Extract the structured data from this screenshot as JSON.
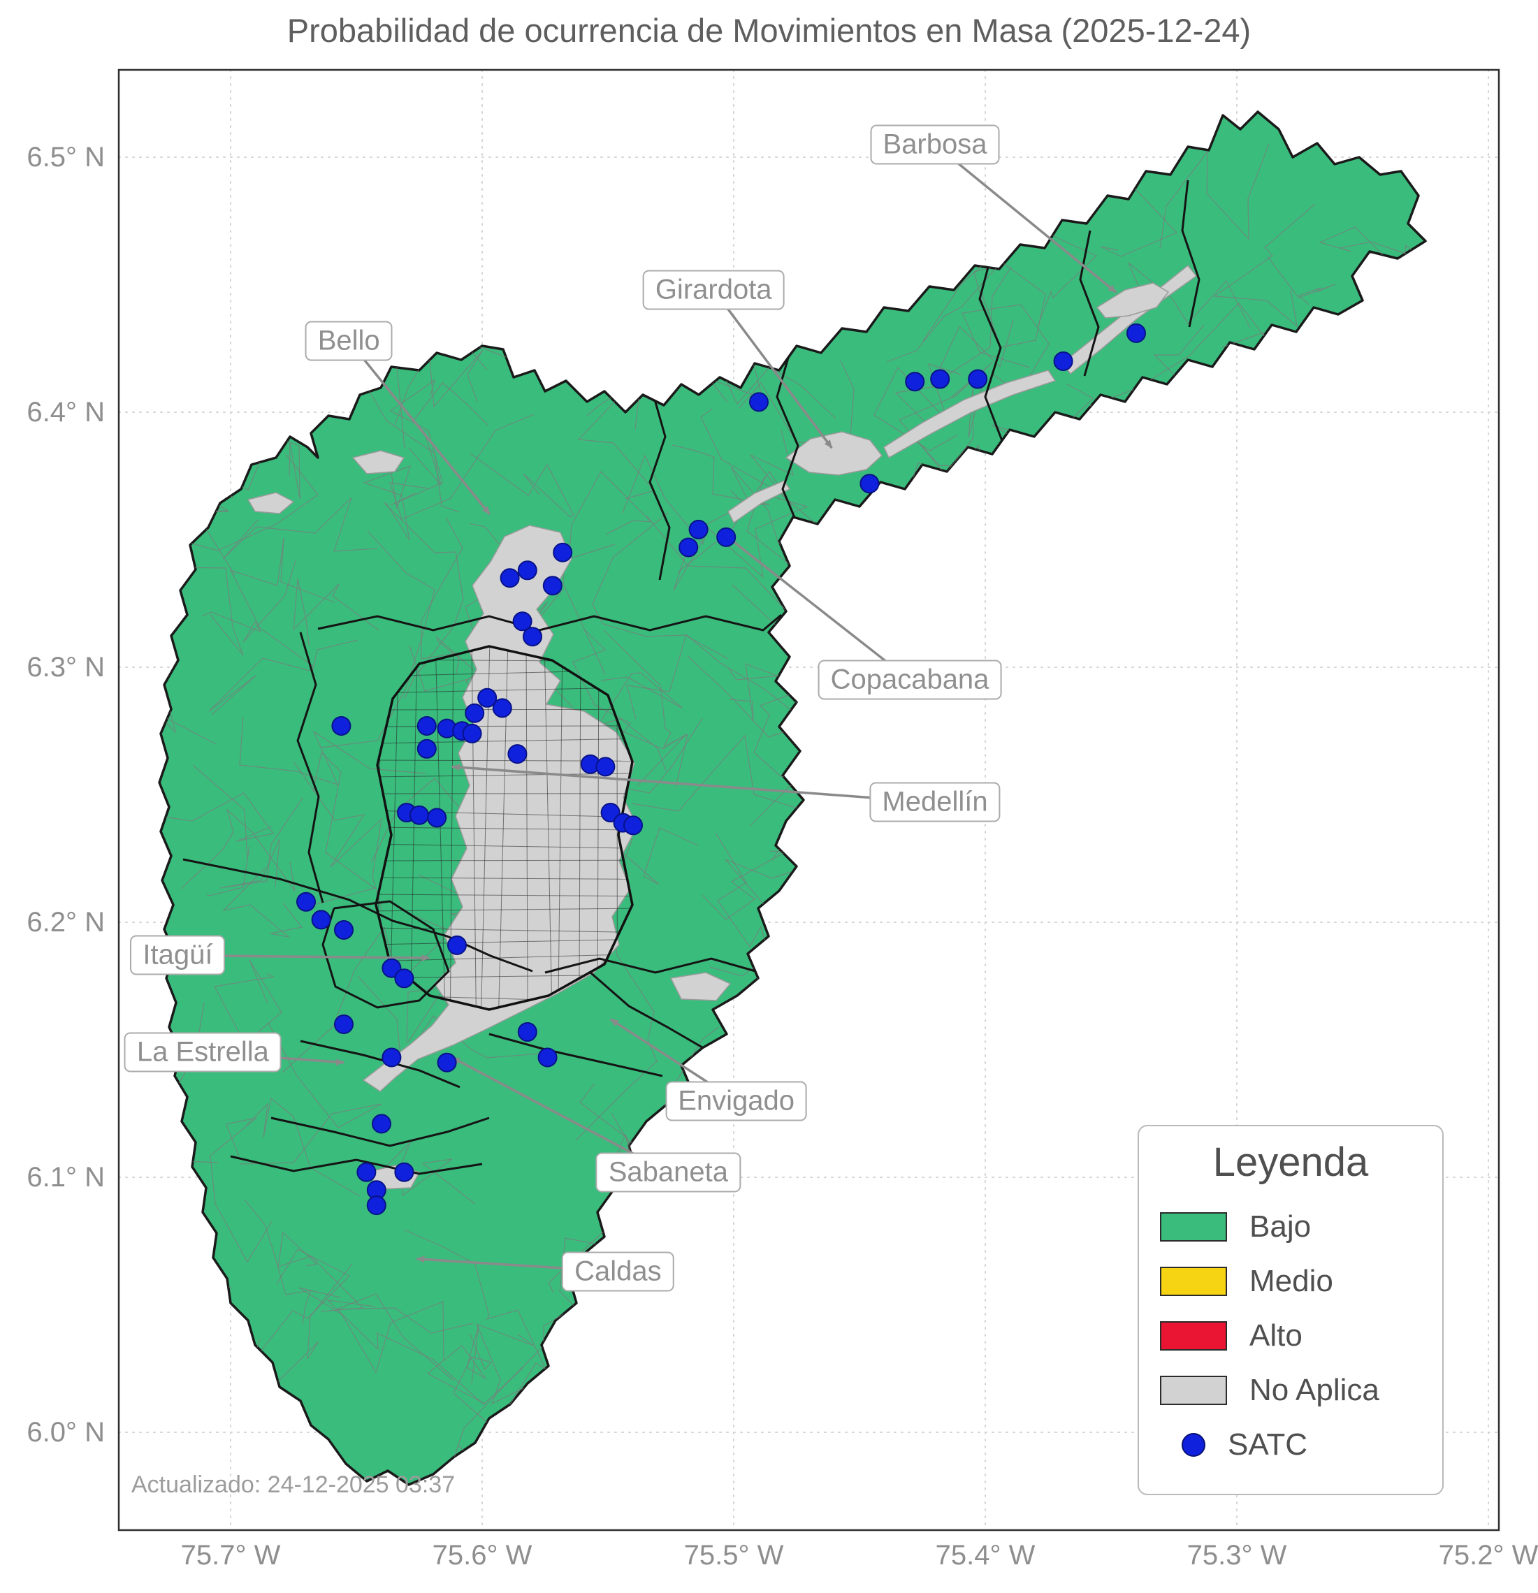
{
  "title": "Probabilidad de ocurrencia de Movimientos en Masa (2025-12-24)",
  "footnote": "Actualizado: 24-12-2025 03:37",
  "axes": {
    "x_tick_labels": [
      "75.7° W",
      "75.6° W",
      "75.5° W",
      "75.4° W",
      "75.3° W",
      "75.2° W"
    ],
    "y_tick_labels": [
      "6.5° N",
      "6.4° N",
      "6.3° N",
      "6.2° N",
      "6.1° N",
      "6.0° N"
    ]
  },
  "legend": {
    "title": "Leyenda",
    "items": [
      {
        "label": "Bajo",
        "swatch": "patch",
        "color": "#3abc7d"
      },
      {
        "label": "Medio",
        "swatch": "patch",
        "color": "#f6d413"
      },
      {
        "label": "Alto",
        "swatch": "patch",
        "color": "#e91532"
      },
      {
        "label": "No Aplica",
        "swatch": "patch",
        "color": "#d2d2d2"
      },
      {
        "label": "SATC",
        "swatch": "point",
        "color": "#1021dd"
      }
    ]
  },
  "colors": {
    "bajo": "#3abc7d",
    "medio": "#f6d413",
    "alto": "#e91532",
    "no_aplica": "#d2d2d2",
    "satc": "#1021dd",
    "boundary": "#141414",
    "annotation": "#8a8a8a"
  },
  "annotations": [
    {
      "name": "Barbosa",
      "lon": 75.42,
      "lat": 6.505,
      "target_lon": 75.348,
      "target_lat": 6.447
    },
    {
      "name": "Girardota",
      "lon": 75.508,
      "lat": 6.448,
      "target_lon": 75.461,
      "target_lat": 6.386
    },
    {
      "name": "Bello",
      "lon": 75.653,
      "lat": 6.428,
      "target_lon": 75.597,
      "target_lat": 6.36
    },
    {
      "name": "Copacabana",
      "lon": 75.43,
      "lat": 6.295,
      "target_lon": 75.505,
      "target_lat": 6.353
    },
    {
      "name": "Medellín",
      "lon": 75.42,
      "lat": 6.247,
      "target_lon": 75.612,
      "target_lat": 6.261
    },
    {
      "name": "Itagüí",
      "lon": 75.721,
      "lat": 6.187,
      "target_lon": 75.621,
      "target_lat": 6.186
    },
    {
      "name": "La Estrella",
      "lon": 75.711,
      "lat": 6.149,
      "target_lon": 75.655,
      "target_lat": 6.145
    },
    {
      "name": "Envigado",
      "lon": 75.499,
      "lat": 6.13,
      "target_lon": 75.549,
      "target_lat": 6.162
    },
    {
      "name": "Sabaneta",
      "lon": 75.526,
      "lat": 6.102,
      "target_lon": 75.612,
      "target_lat": 6.147
    },
    {
      "name": "Caldas",
      "lon": 75.546,
      "lat": 6.063,
      "target_lon": 75.626,
      "target_lat": 6.068
    }
  ],
  "satc_points": [
    [
      75.34,
      6.431
    ],
    [
      75.369,
      6.42
    ],
    [
      75.403,
      6.413
    ],
    [
      75.418,
      6.413
    ],
    [
      75.428,
      6.412
    ],
    [
      75.49,
      6.404
    ],
    [
      75.446,
      6.372
    ],
    [
      75.503,
      6.351
    ],
    [
      75.514,
      6.354
    ],
    [
      75.518,
      6.347
    ],
    [
      75.568,
      6.345
    ],
    [
      75.582,
      6.338
    ],
    [
      75.572,
      6.332
    ],
    [
      75.589,
      6.335
    ],
    [
      75.584,
      6.318
    ],
    [
      75.58,
      6.312
    ],
    [
      75.598,
      6.288
    ],
    [
      75.592,
      6.284
    ],
    [
      75.603,
      6.282
    ],
    [
      75.656,
      6.277
    ],
    [
      75.622,
      6.277
    ],
    [
      75.614,
      6.276
    ],
    [
      75.608,
      6.275
    ],
    [
      75.604,
      6.274
    ],
    [
      75.622,
      6.268
    ],
    [
      75.586,
      6.266
    ],
    [
      75.557,
      6.262
    ],
    [
      75.551,
      6.261
    ],
    [
      75.63,
      6.243
    ],
    [
      75.625,
      6.242
    ],
    [
      75.618,
      6.241
    ],
    [
      75.549,
      6.243
    ],
    [
      75.544,
      6.239
    ],
    [
      75.54,
      6.238
    ],
    [
      75.67,
      6.208
    ],
    [
      75.664,
      6.201
    ],
    [
      75.655,
      6.197
    ],
    [
      75.61,
      6.191
    ],
    [
      75.636,
      6.182
    ],
    [
      75.631,
      6.178
    ],
    [
      75.655,
      6.16
    ],
    [
      75.636,
      6.147
    ],
    [
      75.582,
      6.157
    ],
    [
      75.574,
      6.147
    ],
    [
      75.614,
      6.145
    ],
    [
      75.64,
      6.121
    ],
    [
      75.646,
      6.102
    ],
    [
      75.631,
      6.102
    ],
    [
      75.642,
      6.095
    ],
    [
      75.642,
      6.089
    ]
  ]
}
